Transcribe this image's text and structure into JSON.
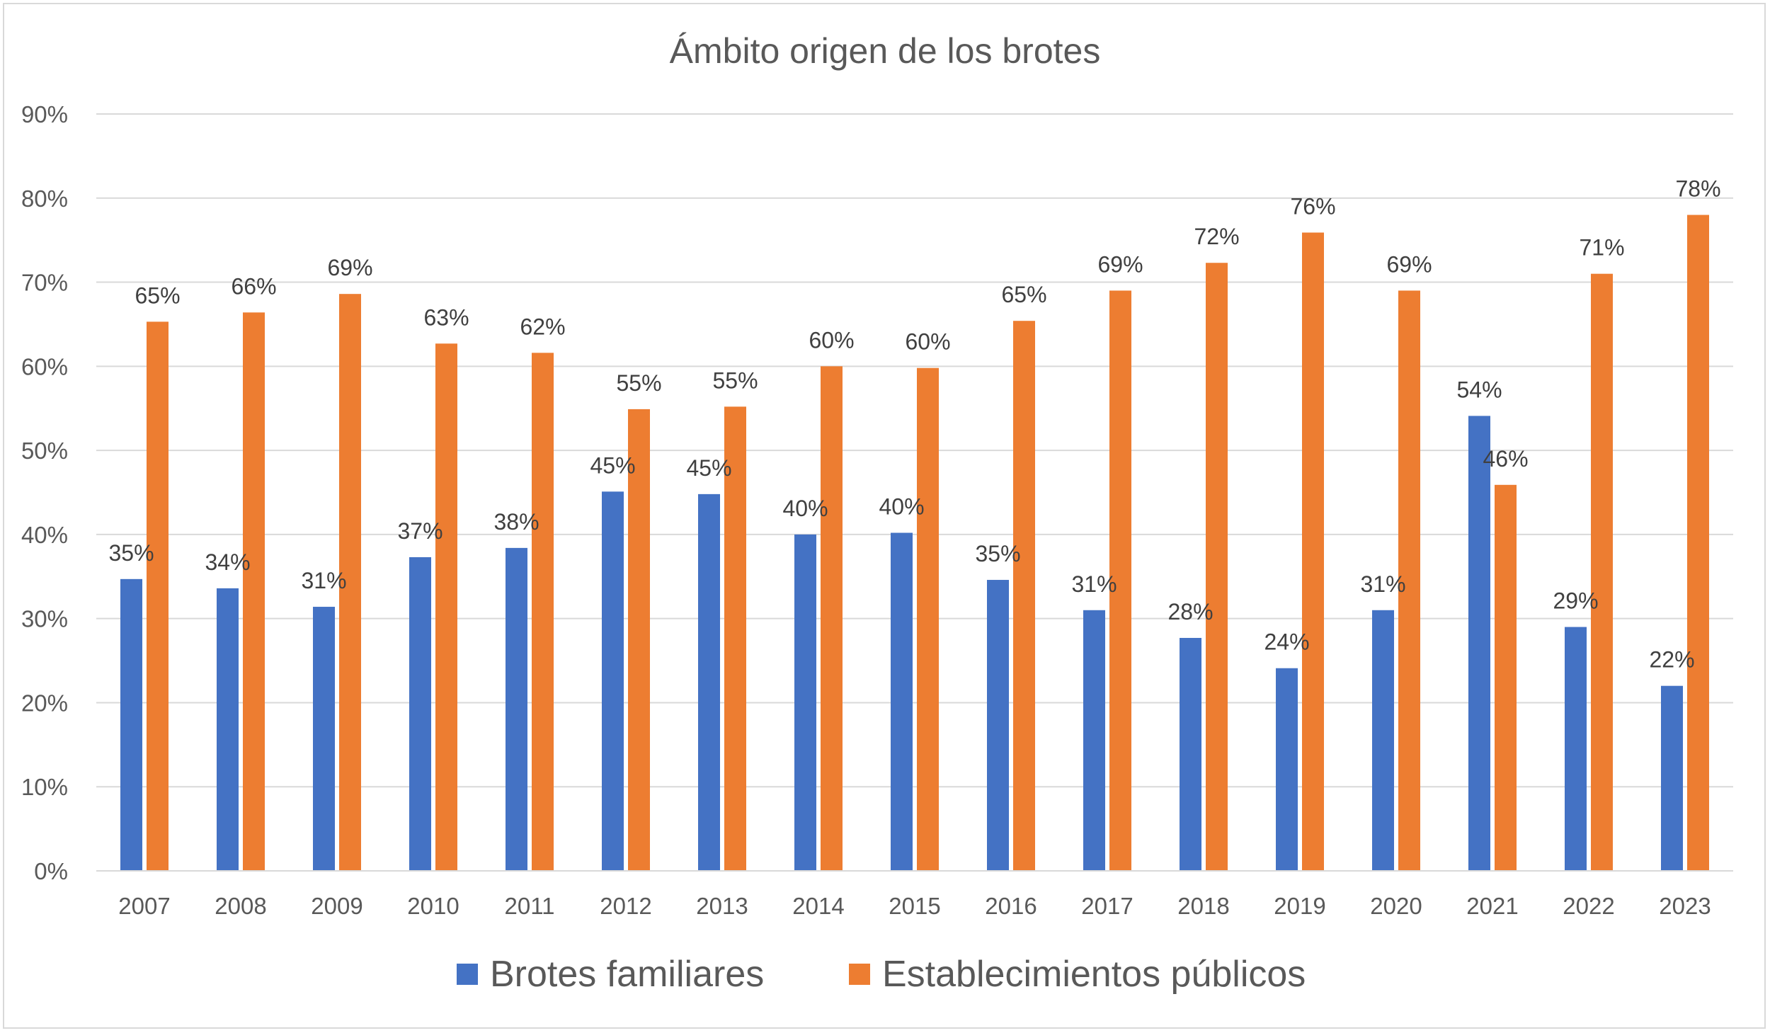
{
  "chart_data": {
    "type": "bar",
    "title": "Ámbito origen de los brotes",
    "xlabel": "",
    "ylabel": "",
    "ylim": [
      0,
      90
    ],
    "y_ticks": [
      "0%",
      "10%",
      "20%",
      "30%",
      "40%",
      "50%",
      "60%",
      "70%",
      "80%",
      "90%"
    ],
    "y_tick_values": [
      0,
      10,
      20,
      30,
      40,
      50,
      60,
      70,
      80,
      90
    ],
    "grid": true,
    "legend_position": "bottom",
    "categories": [
      "2007",
      "2008",
      "2009",
      "2010",
      "2011",
      "2012",
      "2013",
      "2014",
      "2015",
      "2016",
      "2017",
      "2018",
      "2019",
      "2020",
      "2021",
      "2022",
      "2023"
    ],
    "series": [
      {
        "name": "Brotes familiares",
        "color": "#4472c4",
        "values": [
          34.7,
          33.6,
          31.4,
          37.3,
          38.4,
          45.1,
          44.8,
          40.0,
          40.2,
          34.6,
          31.0,
          27.7,
          24.1,
          31.0,
          54.1,
          29.0,
          22.0
        ],
        "labels": [
          "35%",
          "34%",
          "31%",
          "37%",
          "38%",
          "45%",
          "45%",
          "40%",
          "40%",
          "35%",
          "31%",
          "28%",
          "24%",
          "31%",
          "54%",
          "29%",
          "22%"
        ]
      },
      {
        "name": "Establecimientos públicos",
        "color": "#ed7d31",
        "values": [
          65.3,
          66.4,
          68.6,
          62.7,
          61.6,
          54.9,
          55.2,
          60.0,
          59.8,
          65.4,
          69.0,
          72.3,
          75.9,
          69.0,
          45.9,
          71.0,
          78.0
        ],
        "labels": [
          "65%",
          "66%",
          "69%",
          "63%",
          "62%",
          "55%",
          "55%",
          "60%",
          "60%",
          "65%",
          "69%",
          "72%",
          "76%",
          "69%",
          "46%",
          "71%",
          "78%"
        ]
      }
    ]
  }
}
